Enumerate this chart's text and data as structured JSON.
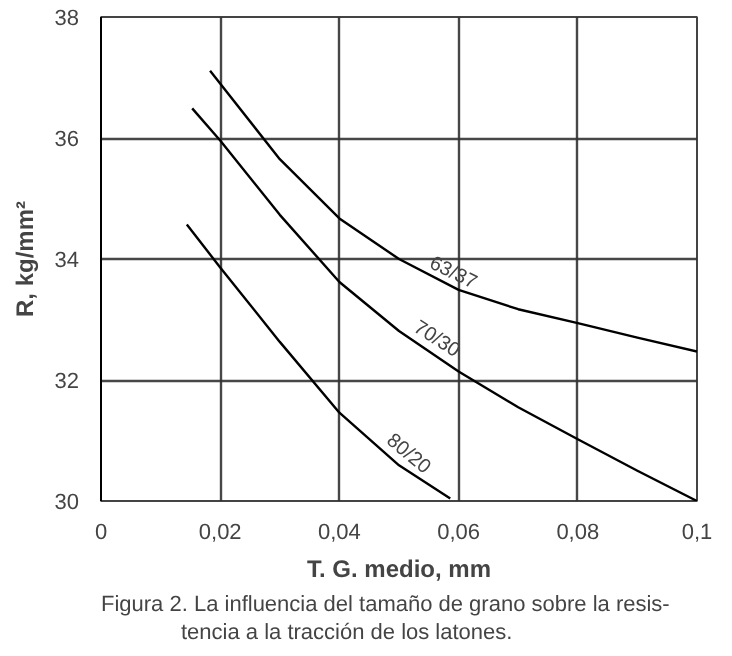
{
  "chart_data": {
    "type": "line",
    "xlabel": "T. G. medio, mm",
    "ylabel": "R, kg/mm²",
    "xlim": [
      0,
      0.1
    ],
    "ylim": [
      30,
      38
    ],
    "xticks": [
      0,
      {
        "value": 0.02,
        "label": "0,02"
      },
      {
        "value": 0.04,
        "label": "0,04"
      },
      {
        "value": 0.06,
        "label": "0,06"
      },
      {
        "value": 0.08,
        "label": "0,08"
      },
      {
        "value": 0.1,
        "label": "0,1"
      }
    ],
    "yticks": [
      30,
      32,
      34,
      36,
      38
    ],
    "grid": true,
    "marker": "none",
    "line_style": "solid",
    "series": [
      {
        "color": "#000000",
        "x": [
          0.0183,
          0.03,
          0.04,
          0.05,
          0.06,
          0.07,
          0.08,
          0.09,
          0.1
        ],
        "values": [
          37.11,
          35.65,
          34.67,
          34.0,
          33.49,
          33.17,
          32.94,
          32.7,
          32.47
        ]
      },
      {
        "color": "#000000",
        "x": [
          0.0153,
          0.02,
          0.03,
          0.04,
          0.05,
          0.06,
          0.07,
          0.08,
          0.09,
          0.1
        ],
        "values": [
          36.49,
          35.96,
          34.73,
          33.62,
          32.81,
          32.14,
          31.55,
          31.02,
          30.5,
          30.0
        ]
      },
      {
        "color": "#000000",
        "x": [
          0.0144,
          0.02,
          0.03,
          0.04,
          0.05,
          0.0586
        ],
        "values": [
          34.57,
          33.86,
          32.63,
          31.46,
          30.59,
          30.04
        ]
      }
    ],
    "annotations": [
      {
        "text": "63/37",
        "x": 0.058,
        "y": 33.55
      },
      {
        "text": "70/30",
        "x": 0.055,
        "y": 32.47
      },
      {
        "text": "80/20",
        "x": 0.05,
        "y": 30.59
      },
      "Figura 2.  La influencia del tamaño de grano sobre la  resis-\ntencia a la tracción de los latones."
    ]
  }
}
